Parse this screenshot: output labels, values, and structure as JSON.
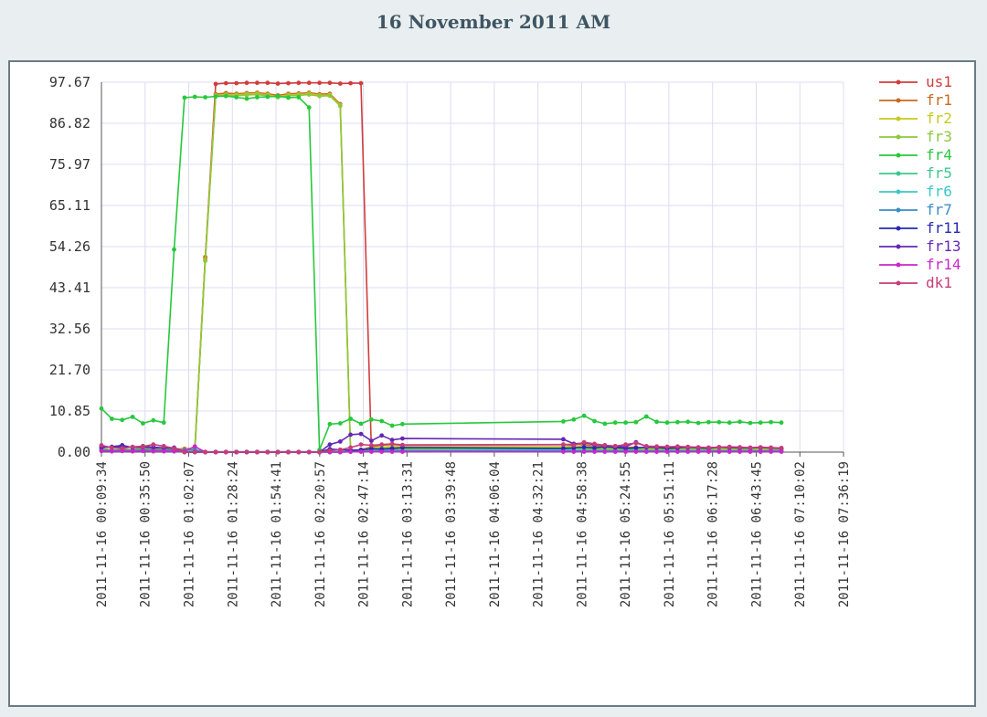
{
  "page": {
    "title": "16 November 2011 AM"
  },
  "chart_data": {
    "type": "line",
    "title": "16 November 2011 AM",
    "xlabel": "",
    "ylabel": "",
    "ylim": [
      0,
      97.67
    ],
    "yticks": [
      "97.67",
      "86.82",
      "75.97",
      "65.11",
      "54.26",
      "43.41",
      "32.56",
      "21.70",
      "10.85",
      "0.00"
    ],
    "xlim": [
      "2011-11-16 00:09:34",
      "2011-11-16 07:36:19"
    ],
    "xticks": [
      "2011-11-16 00:09:34",
      "2011-11-16 00:35:50",
      "2011-11-16 01:02:07",
      "2011-11-16 01:28:24",
      "2011-11-16 01:54:41",
      "2011-11-16 02:20:57",
      "2011-11-16 02:47:14",
      "2011-11-16 03:13:31",
      "2011-11-16 03:39:48",
      "2011-11-16 04:06:04",
      "2011-11-16 04:32:21",
      "2011-11-16 04:58:38",
      "2011-11-16 05:24:55",
      "2011-11-16 05:51:11",
      "2011-11-16 06:17:28",
      "2011-11-16 06:43:45",
      "2011-11-16 07:10:02",
      "2011-11-16 07:36:19"
    ],
    "grid": true,
    "legend_position": "right",
    "x": [
      "2011-11-16 00:09:34",
      "2011-11-16 00:15:49",
      "2011-11-16 00:22:04",
      "2011-11-16 00:28:19",
      "2011-11-16 00:34:34",
      "2011-11-16 00:40:49",
      "2011-11-16 00:47:04",
      "2011-11-16 00:53:19",
      "2011-11-16 00:59:34",
      "2011-11-16 01:05:49",
      "2011-11-16 01:12:04",
      "2011-11-16 01:18:19",
      "2011-11-16 01:24:34",
      "2011-11-16 01:30:49",
      "2011-11-16 01:37:04",
      "2011-11-16 01:43:19",
      "2011-11-16 01:49:34",
      "2011-11-16 01:55:49",
      "2011-11-16 02:02:04",
      "2011-11-16 02:08:19",
      "2011-11-16 02:14:34",
      "2011-11-16 02:20:49",
      "2011-11-16 02:27:04",
      "2011-11-16 02:33:19",
      "2011-11-16 02:39:34",
      "2011-11-16 02:45:49",
      "2011-11-16 02:52:04",
      "2011-11-16 02:58:19",
      "2011-11-16 03:04:34",
      "2011-11-16 03:10:49",
      "2011-11-16 04:47:38",
      "2011-11-16 04:53:53",
      "2011-11-16 05:00:08",
      "2011-11-16 05:06:23",
      "2011-11-16 05:12:38",
      "2011-11-16 05:18:53",
      "2011-11-16 05:25:08",
      "2011-11-16 05:31:23",
      "2011-11-16 05:37:38",
      "2011-11-16 05:43:53",
      "2011-11-16 05:50:08",
      "2011-11-16 05:56:23",
      "2011-11-16 06:02:38",
      "2011-11-16 06:08:53",
      "2011-11-16 06:15:08",
      "2011-11-16 06:21:23",
      "2011-11-16 06:27:38",
      "2011-11-16 06:33:53",
      "2011-11-16 06:40:08",
      "2011-11-16 06:46:23",
      "2011-11-16 06:52:38",
      "2011-11-16 06:58:53"
    ],
    "series": [
      {
        "name": "us1",
        "color": "#d23c3c",
        "values": [
          0.5,
          0.5,
          0.5,
          0.5,
          0.5,
          0.5,
          0.5,
          0.5,
          0.5,
          0.5,
          51.0,
          97.2,
          97.4,
          97.4,
          97.5,
          97.5,
          97.5,
          97.3,
          97.4,
          97.5,
          97.5,
          97.5,
          97.5,
          97.3,
          97.4,
          97.4,
          0.3,
          0.5,
          0.6,
          0.7,
          0.6,
          0.5,
          0.5,
          0.5,
          0.5,
          0.5,
          0.5,
          0.5,
          0.5,
          0.5,
          0.5,
          0.5,
          0.5,
          0.5,
          0.5,
          0.5,
          0.5,
          0.5,
          0.5,
          0.5,
          0.5,
          0.5
        ]
      },
      {
        "name": "fr1",
        "color": "#c8681e",
        "values": [
          1.0,
          0.5,
          0.8,
          0.6,
          1.2,
          0.9,
          1.0,
          0.8,
          0.9,
          1.0,
          51.5,
          94.5,
          94.8,
          94.6,
          94.8,
          94.9,
          94.6,
          94.2,
          94.6,
          94.7,
          94.9,
          94.5,
          94.6,
          91.9,
          0.3,
          0.6,
          1.4,
          1.8,
          2.0,
          1.8,
          2.0,
          2.1,
          1.9,
          1.6,
          1.5,
          1.4,
          1.2,
          1.3,
          1.0,
          1.1,
          0.9,
          1.0,
          1.2,
          1.0,
          0.9,
          1.0,
          0.9,
          0.9,
          0.9,
          1.0,
          0.9,
          0.8
        ]
      },
      {
        "name": "fr2",
        "color": "#c8c81e",
        "values": [
          0.8,
          0.6,
          0.7,
          0.6,
          0.9,
          0.6,
          0.7,
          0.6,
          0.7,
          0.8,
          50.8,
          94.2,
          94.4,
          94.3,
          94.5,
          94.6,
          94.3,
          93.9,
          94.3,
          94.4,
          94.6,
          94.2,
          94.3,
          91.6,
          0.2,
          0.4,
          1.0,
          1.3,
          1.5,
          1.4,
          1.5,
          1.6,
          1.4,
          1.2,
          1.1,
          1.1,
          1.0,
          1.0,
          0.9,
          0.9,
          0.8,
          0.8,
          0.9,
          0.8,
          0.8,
          0.8,
          0.8,
          0.7,
          0.8,
          0.8,
          0.7,
          0.7
        ]
      },
      {
        "name": "fr3",
        "color": "#8cc83c",
        "values": [
          0.7,
          0.5,
          0.6,
          0.5,
          0.8,
          0.6,
          0.6,
          0.5,
          0.6,
          0.7,
          50.5,
          94.0,
          94.2,
          94.1,
          94.3,
          94.4,
          94.1,
          93.7,
          94.1,
          94.2,
          94.4,
          94.0,
          94.1,
          91.4,
          0.2,
          0.3,
          0.8,
          1.0,
          1.1,
          1.0,
          1.1,
          1.2,
          1.0,
          0.9,
          0.8,
          0.8,
          0.7,
          0.8,
          0.7,
          0.7,
          0.6,
          0.6,
          0.7,
          0.6,
          0.6,
          0.6,
          0.6,
          0.6,
          0.6,
          0.6,
          0.6,
          0.6
        ]
      },
      {
        "name": "fr4",
        "color": "#28c83c",
        "values": [
          11.5,
          8.8,
          8.5,
          9.3,
          7.6,
          8.4,
          7.8,
          53.5,
          93.6,
          93.8,
          93.7,
          93.9,
          94.0,
          93.7,
          93.3,
          93.7,
          93.8,
          94.0,
          93.6,
          93.7,
          91.0,
          0.6,
          7.4,
          7.6,
          8.8,
          7.5,
          8.6,
          8.2,
          7.0,
          7.4,
          8.1,
          8.6,
          9.6,
          8.2,
          7.5,
          7.8,
          7.8,
          7.9,
          9.4,
          8.0,
          7.8,
          7.9,
          8.0,
          7.7,
          7.9,
          7.9,
          7.8,
          8.0,
          7.7,
          7.8,
          7.9,
          7.8
        ]
      },
      {
        "name": "fr5",
        "color": "#3cc88c",
        "values": [
          0.6,
          0.4,
          0.5,
          0.4,
          0.6,
          0.5,
          0.5,
          0.4,
          0.5,
          0.6,
          0.1,
          0.1,
          0.1,
          0.1,
          0.1,
          0.1,
          0.1,
          0.1,
          0.1,
          0.1,
          0.1,
          0.1,
          0.1,
          0.1,
          0.2,
          0.3,
          0.5,
          0.6,
          0.6,
          0.6,
          0.7,
          0.7,
          0.6,
          0.5,
          0.5,
          0.5,
          0.4,
          0.5,
          0.4,
          0.4,
          0.4,
          0.4,
          0.5,
          0.4,
          0.4,
          0.4,
          0.4,
          0.4,
          0.4,
          0.4,
          0.4,
          0.4
        ]
      },
      {
        "name": "fr6",
        "color": "#3cc8c8",
        "values": [
          0.4,
          0.3,
          0.3,
          0.3,
          0.4,
          0.3,
          0.3,
          0.3,
          0.3,
          0.4,
          0.0,
          0.0,
          0.0,
          0.0,
          0.0,
          0.0,
          0.0,
          0.0,
          0.0,
          0.0,
          0.0,
          0.0,
          0.0,
          0.0,
          0.1,
          0.2,
          0.3,
          0.4,
          0.4,
          0.4,
          0.4,
          0.4,
          0.3,
          0.3,
          0.3,
          0.3,
          0.3,
          0.3,
          0.3,
          0.3,
          0.3,
          0.3,
          0.3,
          0.3,
          0.3,
          0.3,
          0.3,
          0.3,
          0.3,
          0.3,
          0.3,
          0.3
        ]
      },
      {
        "name": "fr7",
        "color": "#3c8cc8",
        "values": [
          0.5,
          0.5,
          0.6,
          0.5,
          0.7,
          0.6,
          0.5,
          0.5,
          0.6,
          0.6,
          0.0,
          0.0,
          0.0,
          0.0,
          0.0,
          0.0,
          0.0,
          0.0,
          0.0,
          0.0,
          0.0,
          0.0,
          0.0,
          0.0,
          0.1,
          0.2,
          0.2,
          0.3,
          0.4,
          0.3,
          0.3,
          0.3,
          0.3,
          0.3,
          0.3,
          0.3,
          0.3,
          0.3,
          0.3,
          0.3,
          0.3,
          0.3,
          0.3,
          0.3,
          0.3,
          0.3,
          0.3,
          0.3,
          0.3,
          0.3,
          0.3,
          0.3
        ]
      },
      {
        "name": "fr11",
        "color": "#2828b4",
        "values": [
          1.2,
          1.4,
          1.8,
          1.2,
          1.4,
          1.3,
          1.1,
          1.0,
          0.0,
          0.0,
          0.0,
          0.0,
          0.0,
          0.0,
          0.0,
          0.0,
          0.0,
          0.0,
          0.0,
          0.0,
          0.0,
          0.0,
          0.8,
          0.6,
          0.5,
          0.6,
          0.9,
          0.8,
          1.0,
          1.2,
          1.0,
          1.1,
          1.3,
          1.1,
          1.4,
          1.2,
          1.0,
          1.1,
          1.3,
          1.2,
          1.0,
          1.1,
          1.3,
          1.1,
          1.0,
          1.3,
          1.2,
          1.1,
          1.1,
          1.2,
          1.1,
          1.0
        ]
      },
      {
        "name": "fr13",
        "color": "#6428b4",
        "values": [
          1.5,
          1.2,
          1.5,
          1.3,
          1.6,
          1.2,
          1.1,
          1.2,
          0.0,
          0.0,
          0.0,
          0.0,
          0.0,
          0.0,
          0.0,
          0.0,
          0.0,
          0.0,
          0.0,
          0.0,
          0.0,
          0.0,
          2.0,
          2.8,
          4.6,
          4.8,
          3.0,
          4.4,
          3.2,
          3.6,
          3.4,
          2.2,
          2.4,
          2.0,
          1.8,
          1.6,
          1.4,
          2.6,
          1.5,
          1.3,
          1.4,
          1.3,
          1.2,
          1.2,
          1.1,
          1.3,
          1.2,
          1.2,
          1.1,
          1.2,
          1.1,
          1.0
        ]
      },
      {
        "name": "fr14",
        "color": "#c828c8",
        "values": [
          0.3,
          0.2,
          0.3,
          0.2,
          0.3,
          0.2,
          0.2,
          0.2,
          0.3,
          1.5,
          0.0,
          0.0,
          0.0,
          0.0,
          0.0,
          0.0,
          0.0,
          0.0,
          0.0,
          0.0,
          0.0,
          0.0,
          0.0,
          0.0,
          0.1,
          0.1,
          0.1,
          0.1,
          0.1,
          0.1,
          0.1,
          0.1,
          0.1,
          0.1,
          0.1,
          0.1,
          0.1,
          0.1,
          0.1,
          0.1,
          0.1,
          0.1,
          0.1,
          0.1,
          0.1,
          0.1,
          0.1,
          0.1,
          0.1,
          0.1,
          0.1,
          0.1
        ]
      },
      {
        "name": "dk1",
        "color": "#c83c78",
        "values": [
          1.8,
          1.2,
          1.0,
          1.4,
          1.5,
          2.0,
          1.6,
          1.0,
          0.0,
          0.0,
          0.0,
          0.0,
          0.0,
          0.0,
          0.0,
          0.0,
          0.0,
          0.0,
          0.0,
          0.0,
          0.0,
          0.0,
          0.4,
          0.6,
          1.2,
          2.0,
          1.8,
          2.0,
          2.2,
          1.9,
          2.0,
          1.8,
          2.6,
          2.2,
          1.8,
          1.6,
          2.0,
          2.4,
          1.6,
          1.5,
          1.4,
          1.5,
          1.4,
          1.3,
          1.2,
          1.3,
          1.4,
          1.3,
          1.2,
          1.3,
          1.2,
          1.1
        ]
      }
    ]
  }
}
